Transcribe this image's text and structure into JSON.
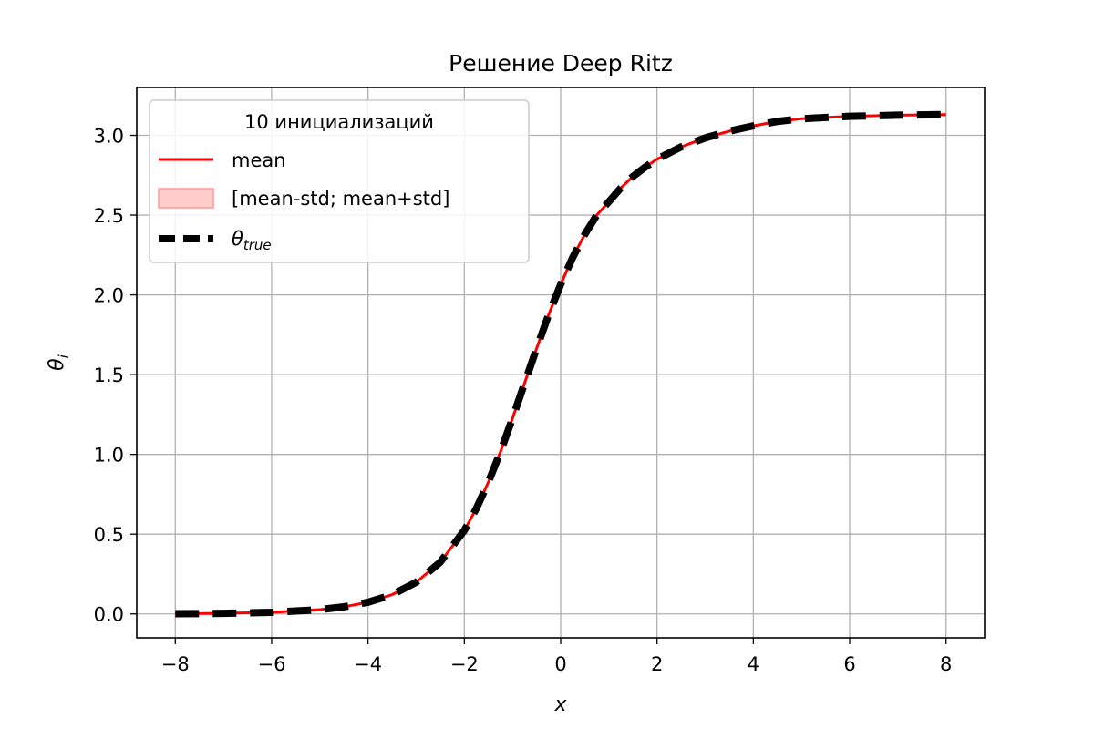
{
  "chart_data": {
    "type": "line",
    "title": "Решение Deep Ritz",
    "xlabel": "x",
    "ylabel_base": "θ",
    "ylabel_sub": "i",
    "xlim": [
      -8.8,
      8.8
    ],
    "ylim": [
      -0.15,
      3.3
    ],
    "xticks": [
      -8,
      -6,
      -4,
      -2,
      0,
      2,
      4,
      6,
      8
    ],
    "xtick_labels": [
      "−8",
      "−6",
      "−4",
      "−2",
      "0",
      "2",
      "4",
      "6",
      "8"
    ],
    "yticks": [
      0.0,
      0.5,
      1.0,
      1.5,
      2.0,
      2.5,
      3.0
    ],
    "ytick_labels": [
      "0.0",
      "0.5",
      "1.0",
      "1.5",
      "2.0",
      "2.5",
      "3.0"
    ],
    "grid": true,
    "legend": {
      "title": "10 инициализаций",
      "placement": "upper-left",
      "entries": [
        {
          "label": "mean",
          "style": "solid-line",
          "color": "#ff0000"
        },
        {
          "label": "[mean-std; mean+std]",
          "style": "fill",
          "color": "#ffcccc"
        },
        {
          "label_base": "θ",
          "label_sub": "true",
          "style": "dashed-line",
          "color": "#000000"
        }
      ]
    },
    "series": [
      {
        "name": "mean",
        "color": "#ff0000",
        "x": [
          -8,
          -7,
          -6,
          -5,
          -4.5,
          -4,
          -3.5,
          -3,
          -2.5,
          -2,
          -1.75,
          -1.5,
          -1.25,
          -1,
          -0.75,
          -0.5,
          -0.25,
          0,
          0.25,
          0.5,
          0.75,
          1,
          1.25,
          1.5,
          1.75,
          2,
          2.5,
          3,
          3.5,
          4,
          4.5,
          5,
          6,
          7,
          8
        ],
        "y": [
          0.0013,
          0.0036,
          0.0099,
          0.0269,
          0.0444,
          0.0732,
          0.1206,
          0.1984,
          0.3246,
          0.5236,
          0.6615,
          0.8264,
          1.0162,
          1.2261,
          1.4457,
          1.6639,
          1.8752,
          2.0655,
          2.2347,
          2.3791,
          2.5,
          2.5839,
          2.6709,
          2.7421,
          2.8,
          2.8502,
          2.9274,
          2.9839,
          3.0262,
          3.0594,
          3.0874,
          3.1043,
          3.1193,
          3.1267,
          3.1303
        ]
      },
      {
        "name": "[mean-std; mean+std]",
        "color": "#ffcccc",
        "lower": [
          0.0013,
          0.0036,
          0.0099,
          0.0269,
          0.0444,
          0.0732,
          0.1206,
          0.1984,
          0.3246,
          0.5236,
          0.6615,
          0.8264,
          1.0162,
          1.2261,
          1.4457,
          1.6639,
          1.8752,
          2.0655,
          2.2347,
          2.3791,
          2.5,
          2.5839,
          2.6709,
          2.7421,
          2.8,
          2.8502,
          2.9274,
          2.9839,
          3.0262,
          3.0594,
          3.0874,
          3.1043,
          3.1193,
          3.1267,
          3.1303
        ],
        "upper": [
          0.0013,
          0.0036,
          0.0099,
          0.0269,
          0.0444,
          0.0732,
          0.1206,
          0.1984,
          0.3246,
          0.5236,
          0.6615,
          0.8264,
          1.0162,
          1.2261,
          1.4457,
          1.6639,
          1.8752,
          2.0655,
          2.2347,
          2.3791,
          2.5,
          2.5839,
          2.6709,
          2.7421,
          2.8,
          2.8502,
          2.9274,
          2.9839,
          3.0262,
          3.0594,
          3.0874,
          3.1043,
          3.1193,
          3.1267,
          3.1303
        ]
      },
      {
        "name": "θtrue",
        "color": "#000000",
        "x": [
          -8,
          -7,
          -6,
          -5,
          -4.5,
          -4,
          -3.5,
          -3,
          -2.5,
          -2,
          -1.75,
          -1.5,
          -1.25,
          -1,
          -0.75,
          -0.5,
          -0.25,
          0,
          0.25,
          0.5,
          0.75,
          1,
          1.25,
          1.5,
          1.75,
          2,
          2.5,
          3,
          3.5,
          4,
          4.5,
          5,
          6,
          7,
          8
        ],
        "y": [
          0.0013,
          0.0036,
          0.0099,
          0.0269,
          0.0444,
          0.0732,
          0.1206,
          0.1984,
          0.3246,
          0.5236,
          0.6615,
          0.8264,
          1.0162,
          1.2261,
          1.4457,
          1.6639,
          1.8752,
          2.0655,
          2.2347,
          2.3791,
          2.5,
          2.5839,
          2.6709,
          2.7421,
          2.8,
          2.8502,
          2.9274,
          2.9839,
          3.0262,
          3.0594,
          3.0874,
          3.1043,
          3.1193,
          3.1267,
          3.1303
        ]
      }
    ]
  }
}
